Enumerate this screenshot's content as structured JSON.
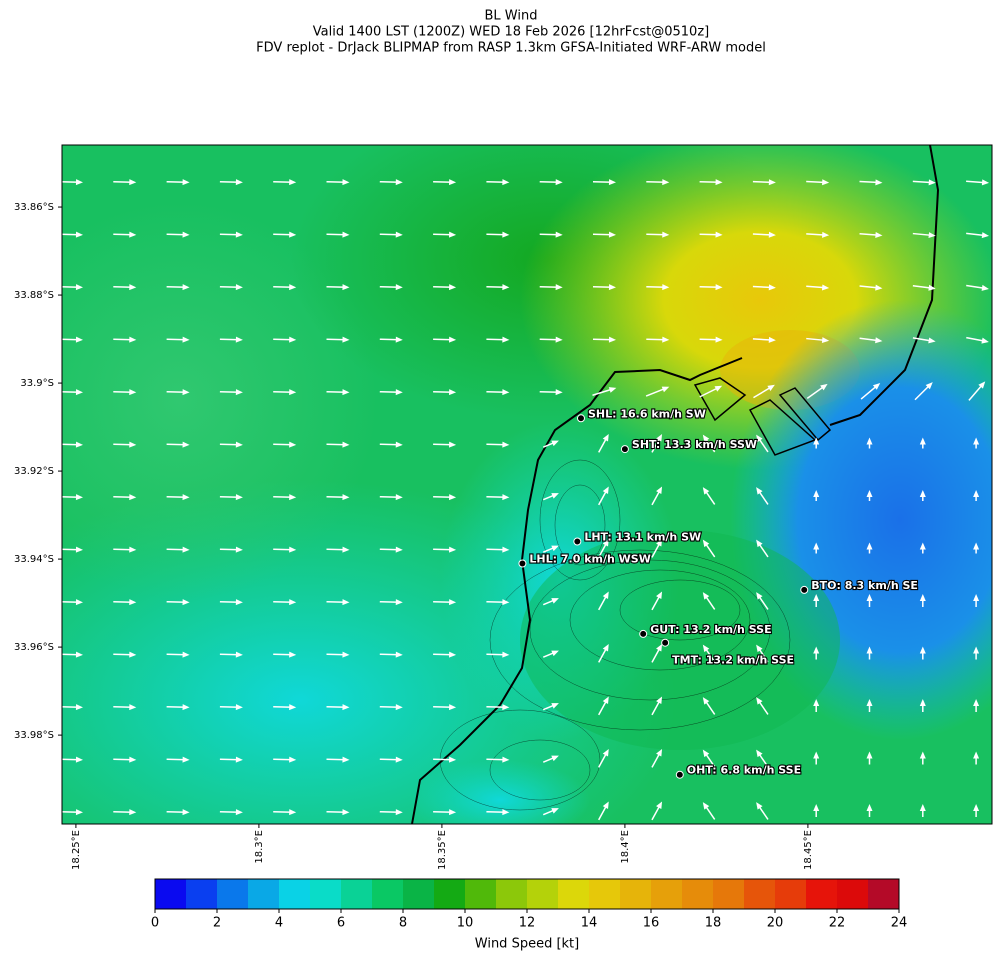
{
  "title": [
    "BL Wind",
    "Valid 1400 LST (1200Z) WED 18 Feb 2026 [12hrFcst@0510z]",
    "FDV replot - DrJack BLIPMAP from RASP 1.3km GFSA-Initiated WRF-ARW model"
  ],
  "map": {
    "xlim": [
      18.2462,
      18.5003
    ],
    "ylim": [
      -34.0002,
      -33.8459
    ],
    "yticks": [
      {
        "value": -33.86,
        "label": "33.86°S"
      },
      {
        "value": -33.88,
        "label": "33.88°S"
      },
      {
        "value": -33.9,
        "label": "33.9°S"
      },
      {
        "value": -33.92,
        "label": "33.92°S"
      },
      {
        "value": -33.94,
        "label": "33.94°S"
      },
      {
        "value": -33.96,
        "label": "33.96°S"
      },
      {
        "value": -33.98,
        "label": "33.98°S"
      }
    ],
    "xticks": [
      {
        "value": 18.25,
        "label": "18.25°E"
      },
      {
        "value": 18.3,
        "label": "18.3°E"
      },
      {
        "value": 18.35,
        "label": "18.35°E"
      },
      {
        "value": 18.4,
        "label": "18.4°E"
      },
      {
        "value": 18.45,
        "label": "18.45°E"
      }
    ],
    "stations": [
      {
        "label": "SHL: 16.6 km/h SW",
        "lon": 18.388,
        "lat": -33.908
      },
      {
        "label": "SHT: 13.3 km/h SSW",
        "lon": 18.4,
        "lat": -33.915
      },
      {
        "label": "LHT: 13.1 km/h SW",
        "lon": 18.387,
        "lat": -33.936
      },
      {
        "label": "LHL: 7.0 km/h WSW",
        "lon": 18.372,
        "lat": -33.941
      },
      {
        "label": "BTO: 8.3 km/h SE",
        "lon": 18.449,
        "lat": -33.947
      },
      {
        "label": "GUT: 13.2 km/h SSE",
        "lon": 18.405,
        "lat": -33.957
      },
      {
        "label": "TMT: 13.2 km/h SSE",
        "lon": 18.411,
        "lat": -33.959
      },
      {
        "label": "OHT: 6.8 km/h SSE",
        "lon": 18.415,
        "lat": -33.989
      }
    ]
  },
  "colorbar": {
    "label": "Wind Speed [kt]",
    "lim": [
      0,
      24
    ],
    "ticks": [
      0,
      2,
      4,
      6,
      8,
      10,
      12,
      14,
      16,
      18,
      20,
      22,
      24
    ],
    "colors": [
      "#0a0af0",
      "#0a3ff0",
      "#0a78eb",
      "#0aa8e6",
      "#0ad2e6",
      "#0adcc8",
      "#0ad296",
      "#0ac864",
      "#0ab446",
      "#14aa14",
      "#50b90a",
      "#8cc80a",
      "#b4d20a",
      "#dcd70a",
      "#e6c80a",
      "#e6b40a",
      "#e6a00a",
      "#e68c0a",
      "#e6780a",
      "#e6550a",
      "#e63c0a",
      "#e6140a",
      "#dc0a0a",
      "#b40a28"
    ]
  }
}
